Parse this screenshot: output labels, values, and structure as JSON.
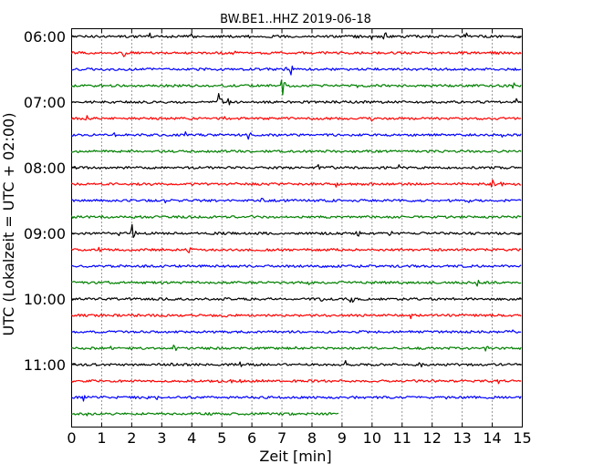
{
  "chart_data": {
    "type": "line",
    "title": "BW.BE1..HHZ 2019-06-18",
    "xlabel": "Zeit  [min]",
    "ylabel": "UTC (Lokalzeit = UTC + 02:00)",
    "xlim": [
      0,
      15
    ],
    "x_ticks": [
      "0",
      "1",
      "2",
      "3",
      "4",
      "5",
      "6",
      "7",
      "8",
      "9",
      "10",
      "11",
      "12",
      "13",
      "14",
      "15"
    ],
    "y_ticks": [
      "06:00",
      "07:00",
      "08:00",
      "09:00",
      "10:00",
      "11:00"
    ],
    "trace_interval_min": 15,
    "start_time": "06:00",
    "colors": [
      "#000000",
      "#ff0000",
      "#0000ff",
      "#008000"
    ],
    "series": [
      {
        "start": "06:00",
        "color": "#000000",
        "end_min": 15,
        "events": [
          [
            2.6,
            0.3
          ],
          [
            4.0,
            0.3
          ],
          [
            5.9,
            0.3
          ],
          [
            9.5,
            0.25
          ],
          [
            10.0,
            0.35
          ],
          [
            10.4,
            0.6
          ],
          [
            13.1,
            0.5
          ]
        ]
      },
      {
        "start": "06:15",
        "color": "#ff0000",
        "end_min": 15,
        "events": [
          [
            1.7,
            0.55
          ],
          [
            5.4,
            0.3
          ],
          [
            13.7,
            0.4
          ],
          [
            14.2,
            0.3
          ]
        ]
      },
      {
        "start": "06:30",
        "color": "#0000ff",
        "end_min": 15,
        "events": [
          [
            7.3,
            0.6
          ],
          [
            7.1,
            0.3
          ],
          [
            9.1,
            0.2
          ],
          [
            12.6,
            0.2
          ]
        ]
      },
      {
        "start": "06:45",
        "color": "#008000",
        "end_min": 15,
        "events": [
          [
            7.0,
            1.0
          ],
          [
            3.0,
            0.2
          ],
          [
            9.5,
            0.2
          ],
          [
            14.7,
            0.3
          ]
        ]
      },
      {
        "start": "07:00",
        "color": "#000000",
        "end_min": 15,
        "events": [
          [
            4.9,
            1.0
          ],
          [
            0.8,
            0.25
          ],
          [
            5.2,
            0.4
          ],
          [
            14.8,
            0.3
          ]
        ]
      },
      {
        "start": "07:15",
        "color": "#ff0000",
        "end_min": 15,
        "events": [
          [
            0.5,
            0.3
          ],
          [
            10.0,
            0.3
          ],
          [
            15.0,
            0.3
          ],
          [
            2.4,
            0.2
          ],
          [
            5.1,
            0.2
          ]
        ]
      },
      {
        "start": "07:30",
        "color": "#0000ff",
        "end_min": 15,
        "events": [
          [
            5.9,
            0.5
          ],
          [
            1.4,
            0.3
          ],
          [
            3.8,
            0.3
          ],
          [
            11.5,
            0.2
          ],
          [
            14.3,
            0.3
          ]
        ]
      },
      {
        "start": "07:45",
        "color": "#008000",
        "end_min": 15,
        "events": [
          [
            5.0,
            0.2
          ],
          [
            9.5,
            0.2
          ]
        ]
      },
      {
        "start": "08:00",
        "color": "#000000",
        "end_min": 15,
        "events": [
          [
            8.2,
            0.35
          ],
          [
            8.6,
            0.3
          ],
          [
            10.9,
            0.3
          ],
          [
            13.1,
            0.35
          ],
          [
            13.5,
            0.3
          ]
        ]
      },
      {
        "start": "08:15",
        "color": "#ff0000",
        "end_min": 15,
        "events": [
          [
            0.1,
            0.3
          ],
          [
            5.5,
            0.3
          ],
          [
            8.8,
            0.3
          ],
          [
            14.0,
            0.5
          ],
          [
            14.3,
            0.3
          ]
        ]
      },
      {
        "start": "08:30",
        "color": "#0000ff",
        "end_min": 15,
        "events": [
          [
            3.1,
            0.4
          ],
          [
            6.3,
            0.35
          ],
          [
            13.2,
            0.3
          ]
        ]
      },
      {
        "start": "08:45",
        "color": "#008000",
        "end_min": 15,
        "events": [
          [
            6.0,
            0.3
          ],
          [
            13.7,
            0.25
          ],
          [
            4.5,
            0.2
          ]
        ]
      },
      {
        "start": "09:00",
        "color": "#000000",
        "end_min": 15,
        "events": [
          [
            2.0,
            0.85
          ],
          [
            1.6,
            0.5
          ],
          [
            5.0,
            0.35
          ],
          [
            8.9,
            0.4
          ],
          [
            9.5,
            0.5
          ],
          [
            10.6,
            0.3
          ]
        ]
      },
      {
        "start": "09:15",
        "color": "#ff0000",
        "end_min": 15,
        "events": [
          [
            3.9,
            0.45
          ],
          [
            11.4,
            0.25
          ],
          [
            0.9,
            0.3
          ]
        ]
      },
      {
        "start": "09:30",
        "color": "#0000ff",
        "end_min": 15,
        "events": [
          [
            9.6,
            0.3
          ]
        ]
      },
      {
        "start": "09:45",
        "color": "#008000",
        "end_min": 15,
        "events": [
          [
            13.5,
            0.35
          ],
          [
            1.2,
            0.2
          ],
          [
            7.9,
            0.2
          ]
        ]
      },
      {
        "start": "10:00",
        "color": "#000000",
        "end_min": 15,
        "events": [
          [
            8.3,
            0.3
          ],
          [
            9.3,
            0.5
          ],
          [
            4.6,
            0.25
          ],
          [
            7.0,
            0.3
          ]
        ]
      },
      {
        "start": "10:15",
        "color": "#ff0000",
        "end_min": 15,
        "events": [
          [
            5.1,
            0.3
          ],
          [
            11.3,
            0.35
          ],
          [
            4.8,
            0.2
          ]
        ]
      },
      {
        "start": "10:30",
        "color": "#0000ff",
        "end_min": 15,
        "events": [
          [
            14.7,
            0.3
          ],
          [
            14.1,
            0.2
          ],
          [
            2.1,
            0.2
          ]
        ]
      },
      {
        "start": "10:45",
        "color": "#008000",
        "end_min": 15,
        "events": [
          [
            3.4,
            0.45
          ],
          [
            1.3,
            0.3
          ],
          [
            7.4,
            0.3
          ],
          [
            13.8,
            0.35
          ]
        ]
      },
      {
        "start": "11:00",
        "color": "#000000",
        "end_min": 15,
        "events": [
          [
            9.1,
            0.4
          ],
          [
            11.6,
            0.35
          ],
          [
            5.6,
            0.3
          ],
          [
            1.4,
            0.2
          ],
          [
            3.3,
            0.2
          ]
        ]
      },
      {
        "start": "11:15",
        "color": "#ff0000",
        "end_min": 15,
        "events": [
          [
            4.9,
            0.4
          ],
          [
            5.3,
            0.35
          ],
          [
            5.6,
            0.3
          ],
          [
            6.3,
            0.3
          ],
          [
            14.2,
            0.3
          ]
        ]
      },
      {
        "start": "11:30",
        "color": "#0000ff",
        "end_min": 15,
        "events": [
          [
            0.4,
            0.35
          ],
          [
            1.0,
            0.3
          ],
          [
            2.5,
            0.35
          ],
          [
            2.8,
            0.3
          ],
          [
            12.5,
            0.3
          ],
          [
            15.0,
            0.3
          ]
        ]
      },
      {
        "start": "11:45",
        "color": "#008000",
        "end_min": 8.9,
        "events": [
          [
            4.3,
            0.3
          ],
          [
            0.5,
            0.2
          ]
        ]
      }
    ]
  }
}
